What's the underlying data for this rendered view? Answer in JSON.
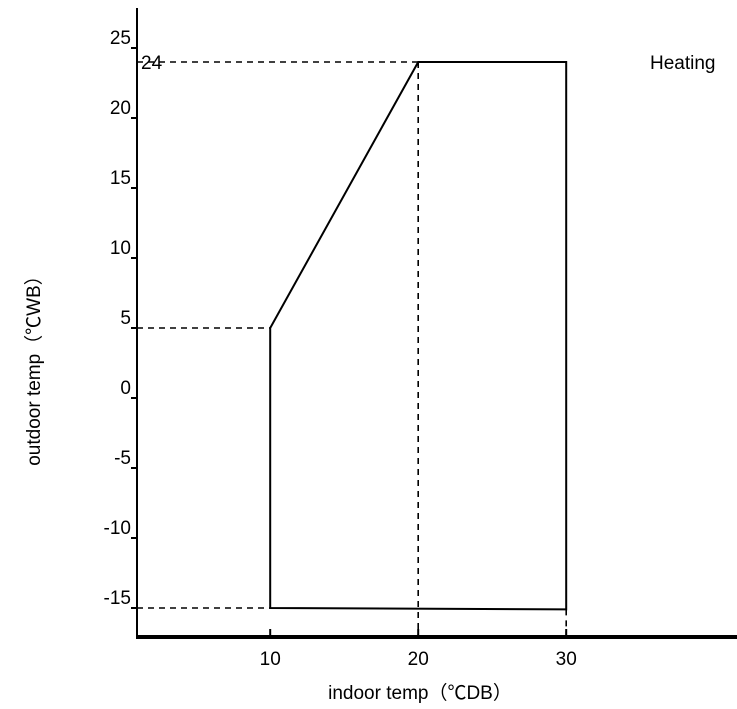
{
  "chart_data": {
    "type": "area",
    "title": "",
    "xlabel": "indoor temp（℃DB）",
    "ylabel": "outdoor temp（℃WB）",
    "xticks": [
      10,
      20,
      30
    ],
    "yticks": [
      25,
      20,
      15,
      10,
      5,
      0,
      -5,
      -10,
      -15
    ],
    "series": [
      {
        "name": "Heating",
        "points": [
          {
            "x": 10,
            "y": -15
          },
          {
            "x": 10,
            "y": 5
          },
          {
            "x": 20,
            "y": 24
          },
          {
            "x": 30,
            "y": 24
          },
          {
            "x": 30,
            "y": -15.1
          }
        ]
      }
    ],
    "reference_lines": [
      {
        "axis": "y",
        "value": 24
      },
      {
        "axis": "y",
        "value": 5
      },
      {
        "axis": "y",
        "value": -15
      },
      {
        "axis": "x",
        "value": 20
      },
      {
        "axis": "x",
        "value": 30
      }
    ],
    "annotations": [
      {
        "text": "24"
      },
      {
        "text": "Heating"
      }
    ],
    "colors": {
      "line": "#000000",
      "background": "#ffffff"
    },
    "grid": false
  }
}
